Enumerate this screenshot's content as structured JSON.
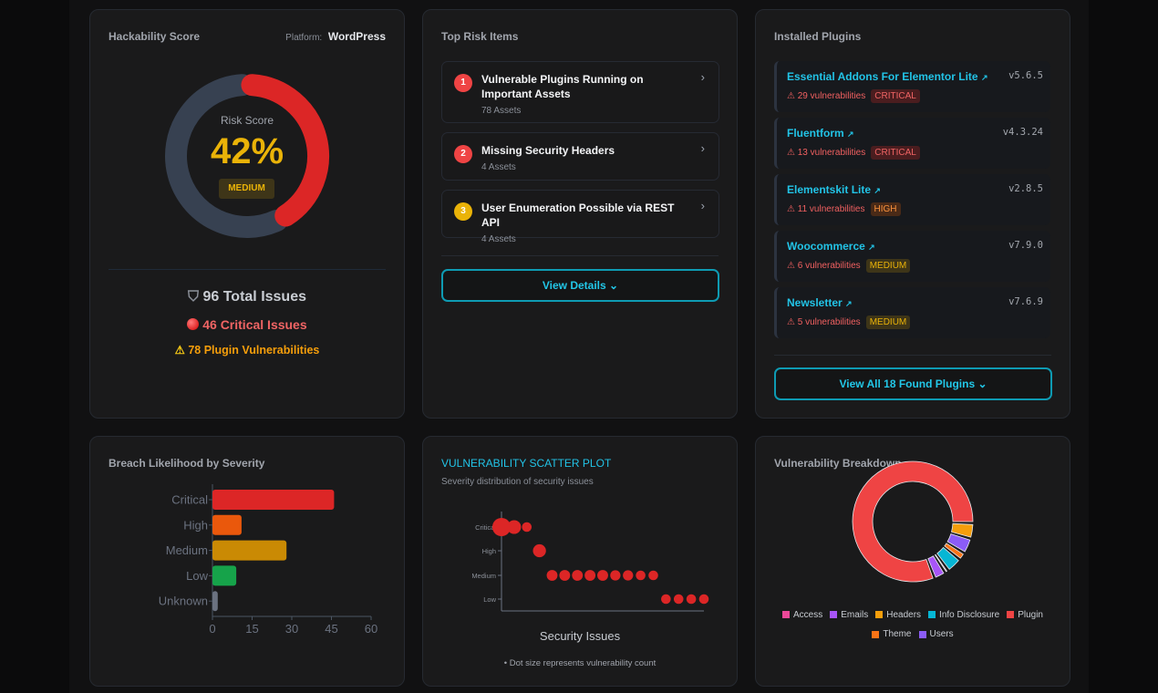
{
  "score": {
    "title": "Hackability Score",
    "platform_label": "Platform:",
    "platform": "WordPress",
    "risk_label": "Risk Score",
    "percent": 42,
    "percent_text": "42%",
    "level": "MEDIUM",
    "total": "96 Total Issues",
    "critical": "46 Critical Issues",
    "plugin_vulns": "78 Plugin Vulnerabilities",
    "colors": {
      "fill": "#dc2626",
      "track": "#374151",
      "value": "#eab308"
    }
  },
  "top_risk": {
    "title": "Top Risk Items",
    "items": [
      {
        "n": "1",
        "title": "Vulnerable Plugins Running on Important Assets",
        "sub": "78 Assets",
        "color": "#ef4444"
      },
      {
        "n": "2",
        "title": "Missing Security Headers",
        "sub": "4 Assets",
        "color": "#ef4444"
      },
      {
        "n": "3",
        "title": "User Enumeration Possible via REST API",
        "sub": "4 Assets",
        "color": "#eab308"
      }
    ],
    "button": "View Details"
  },
  "plugins": {
    "title": "Installed Plugins",
    "items": [
      {
        "name": "Essential Addons For Elementor Lite",
        "version": "v5.6.5",
        "count": "29 vulnerabilities",
        "severity": "CRITICAL"
      },
      {
        "name": "Fluentform",
        "version": "v4.3.24",
        "count": "13 vulnerabilities",
        "severity": "CRITICAL"
      },
      {
        "name": "Elementskit Lite",
        "version": "v2.8.5",
        "count": "11 vulnerabilities",
        "severity": "HIGH"
      },
      {
        "name": "Woocommerce",
        "version": "v7.9.0",
        "count": "6 vulnerabilities",
        "severity": "MEDIUM"
      },
      {
        "name": "Newsletter",
        "version": "v7.6.9",
        "count": "5 vulnerabilities",
        "severity": "MEDIUM"
      }
    ],
    "button": "View All 18 Found Plugins"
  },
  "chart_data": [
    {
      "type": "bar",
      "title": "Breach Likelihood by Severity",
      "orientation": "horizontal",
      "categories": [
        "Critical",
        "High",
        "Medium",
        "Low",
        "Unknown"
      ],
      "values": [
        46,
        11,
        28,
        9,
        2
      ],
      "colors": [
        "#dc2626",
        "#ea580c",
        "#ca8a04",
        "#16a34a",
        "#6b7280"
      ],
      "xlim": [
        0,
        60
      ],
      "xticks": [
        "0",
        "15",
        "30",
        "45",
        "60"
      ]
    },
    {
      "type": "scatter",
      "title": "VULNERABILITY SCATTER PLOT",
      "subtitle": "Severity distribution of security issues",
      "xlabel": "Security Issues",
      "note": "• Dot size represents vulnerability count",
      "yticks": [
        "Critical",
        "High",
        "Medium",
        "Low"
      ],
      "color": "#dc2626",
      "points": [
        {
          "x": 0,
          "y": "Critical",
          "size": 29
        },
        {
          "x": 1,
          "y": "Critical",
          "size": 13
        },
        {
          "x": 2,
          "y": "Critical",
          "size": 4
        },
        {
          "x": 3,
          "y": "High",
          "size": 11
        },
        {
          "x": 4,
          "y": "Medium",
          "size": 6
        },
        {
          "x": 5,
          "y": "Medium",
          "size": 6
        },
        {
          "x": 6,
          "y": "Medium",
          "size": 6
        },
        {
          "x": 7,
          "y": "Medium",
          "size": 6
        },
        {
          "x": 8,
          "y": "Medium",
          "size": 6
        },
        {
          "x": 9,
          "y": "Medium",
          "size": 5
        },
        {
          "x": 10,
          "y": "Medium",
          "size": 5
        },
        {
          "x": 11,
          "y": "Medium",
          "size": 4
        },
        {
          "x": 12,
          "y": "Medium",
          "size": 4
        },
        {
          "x": 13,
          "y": "Low",
          "size": 4
        },
        {
          "x": 14,
          "y": "Low",
          "size": 4
        },
        {
          "x": 15,
          "y": "Low",
          "size": 4
        },
        {
          "x": 16,
          "y": "Low",
          "size": 4
        }
      ]
    },
    {
      "type": "pie",
      "title": "Vulnerability Breakdown",
      "donut": true,
      "slices": [
        {
          "label": "Plugin",
          "value": 78,
          "color": "#ef4444"
        },
        {
          "label": "Emails",
          "value": 3,
          "color": "#a855f7"
        },
        {
          "label": "Access",
          "value": 1,
          "color": "#ec4899"
        },
        {
          "label": "Info Disclosure",
          "value": 4,
          "color": "#06b6d4"
        },
        {
          "label": "Theme",
          "value": 2,
          "color": "#f97316"
        },
        {
          "label": "Users",
          "value": 4,
          "color": "#8b5cf6"
        },
        {
          "label": "Headers",
          "value": 4,
          "color": "#f59e0b"
        }
      ],
      "legend": [
        "Access",
        "Emails",
        "Headers",
        "Info Disclosure",
        "Plugin",
        "Theme",
        "Users"
      ],
      "legend_position": "bottom"
    }
  ]
}
